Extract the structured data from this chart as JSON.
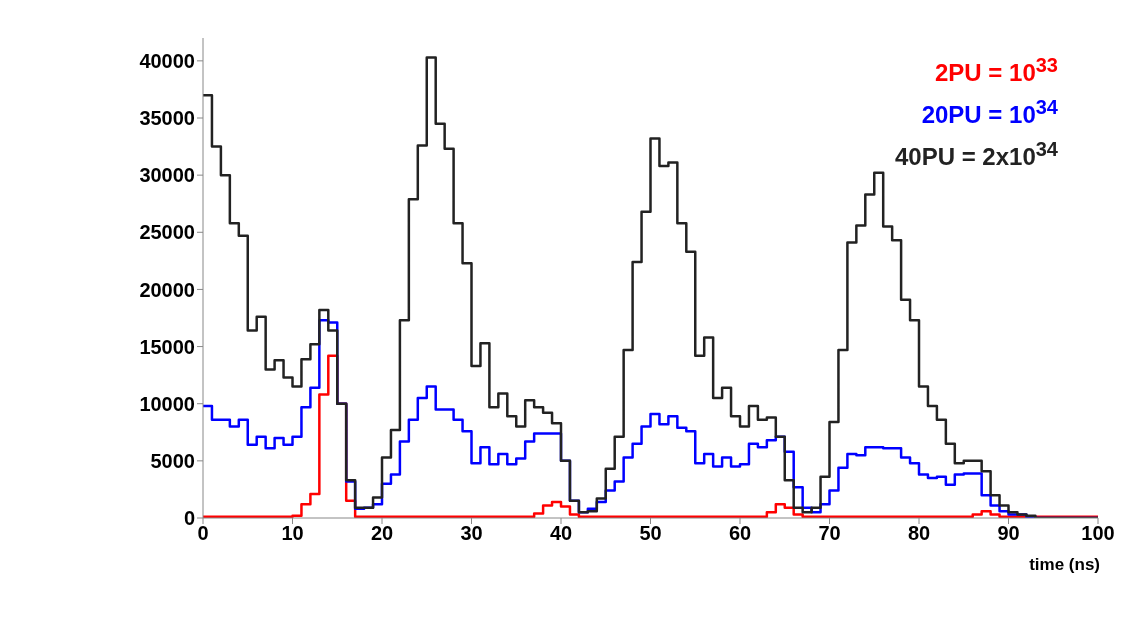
{
  "chart_data": {
    "type": "histogram",
    "xlabel": "time (ns)",
    "bins": [
      0,
      1,
      2,
      3,
      4,
      5,
      6,
      7,
      8,
      9,
      10,
      11,
      12,
      13,
      14,
      15,
      16,
      17,
      18,
      19,
      20,
      21,
      22,
      23,
      24,
      25,
      26,
      27,
      28,
      29,
      30,
      31,
      32,
      33,
      34,
      35,
      36,
      37,
      38,
      39,
      40,
      41,
      42,
      43,
      44,
      45,
      46,
      47,
      48,
      49,
      50,
      51,
      52,
      53,
      54,
      55,
      56,
      57,
      58,
      59,
      60,
      61,
      62,
      63,
      64,
      65,
      66,
      67,
      68,
      69,
      70,
      71,
      72,
      73,
      74,
      75,
      76,
      77,
      78,
      79,
      80,
      81,
      82,
      83,
      84,
      85,
      86,
      87,
      88,
      89,
      90,
      91,
      92,
      93,
      94,
      95,
      96,
      97,
      98,
      99,
      100
    ],
    "series": [
      {
        "name": "2PU = 10$^{33}$",
        "color": "#ff0000",
        "values": [
          100,
          100,
          100,
          100,
          100,
          100,
          100,
          100,
          100,
          100,
          200,
          1200,
          2100,
          10800,
          14200,
          10000,
          1500,
          100,
          100,
          100,
          100,
          100,
          100,
          100,
          100,
          100,
          100,
          100,
          100,
          100,
          100,
          100,
          100,
          100,
          100,
          100,
          100,
          400,
          1100,
          1400,
          1000,
          300,
          100,
          100,
          100,
          100,
          100,
          100,
          100,
          100,
          100,
          100,
          100,
          100,
          100,
          100,
          100,
          100,
          100,
          100,
          100,
          100,
          100,
          500,
          1200,
          900,
          300,
          100,
          100,
          100,
          100,
          100,
          100,
          100,
          100,
          100,
          100,
          100,
          100,
          100,
          100,
          100,
          100,
          100,
          100,
          100,
          300,
          600,
          300,
          100,
          100,
          100,
          100,
          100,
          100,
          100,
          100,
          100,
          100,
          100
        ]
      },
      {
        "name": "20PU = 10$^{34}$",
        "color": "#0000ff",
        "values": [
          9800,
          8600,
          8600,
          8000,
          8600,
          6400,
          7100,
          6100,
          7000,
          6400,
          7100,
          9700,
          11400,
          17300,
          17100,
          10000,
          3200,
          800,
          900,
          1200,
          3000,
          3800,
          6700,
          8600,
          10500,
          11500,
          9500,
          9500,
          8600,
          7600,
          4800,
          6200,
          4700,
          5600,
          4700,
          5200,
          6700,
          7400,
          7400,
          7400,
          5000,
          1500,
          500,
          800,
          1400,
          2400,
          3200,
          5300,
          6500,
          8000,
          9100,
          8200,
          8900,
          7900,
          7600,
          4800,
          5600,
          4500,
          5300,
          4500,
          4700,
          6500,
          6200,
          6800,
          7100,
          5800,
          2700,
          900,
          500,
          1200,
          2400,
          4400,
          5600,
          5500,
          6200,
          6200,
          6100,
          6100,
          5300,
          4800,
          3800,
          3500,
          3600,
          2900,
          3800,
          3900,
          3900,
          2000,
          1100,
          600,
          300,
          300,
          100,
          0,
          0,
          0,
          0,
          0,
          0,
          0
        ]
      },
      {
        "name": "40PU = 2x10$^{34}$",
        "color": "#222222",
        "values": [
          37000,
          32500,
          30000,
          25800,
          24700,
          16400,
          17600,
          13000,
          13800,
          12300,
          11500,
          13900,
          15200,
          18200,
          16400,
          10000,
          3300,
          900,
          900,
          1800,
          5300,
          7700,
          17300,
          27900,
          32600,
          40300,
          34500,
          32300,
          25800,
          22300,
          13300,
          15300,
          9700,
          10900,
          8900,
          8000,
          10300,
          9700,
          9200,
          8300,
          5000,
          1500,
          500,
          600,
          1700,
          4300,
          7100,
          14700,
          22400,
          26800,
          33200,
          30800,
          31100,
          25800,
          23300,
          14200,
          15800,
          10500,
          11400,
          8900,
          8000,
          9800,
          8600,
          8800,
          7100,
          3300,
          900,
          500,
          900,
          3600,
          8400,
          14700,
          24100,
          25600,
          28300,
          30200,
          25500,
          24300,
          19100,
          17300,
          11500,
          9800,
          8600,
          6500,
          4800,
          5000,
          5000,
          4100,
          2000,
          1100,
          500,
          300,
          200,
          0,
          0,
          0,
          0,
          0,
          0,
          0
        ]
      }
    ],
    "xlim": [
      0,
      100
    ],
    "xticks": [
      0,
      10,
      20,
      30,
      40,
      50,
      60,
      70,
      80,
      90,
      100
    ],
    "ylim": [
      0,
      42000
    ],
    "yticks": [
      0,
      5000,
      10000,
      15000,
      20000,
      25000,
      30000,
      35000,
      40000
    ],
    "legend": "top right",
    "grid": false
  }
}
